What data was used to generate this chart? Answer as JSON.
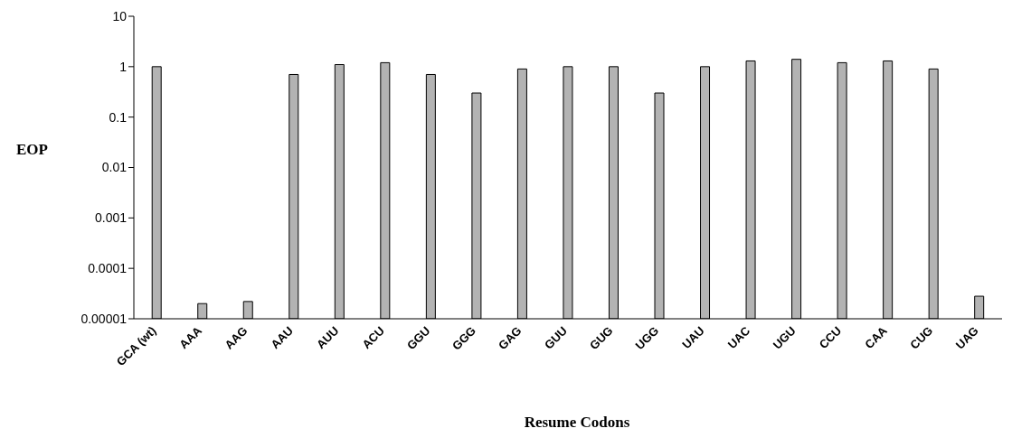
{
  "chart_data": {
    "type": "bar",
    "xlabel": "Resume Codons",
    "ylabel": "EOP",
    "categories": [
      "GCA (wt)",
      "AAA",
      "AAG",
      "AAU",
      "AUU",
      "ACU",
      "GGU",
      "GGG",
      "GAG",
      "GUU",
      "GUG",
      "UGG",
      "UAU",
      "UAC",
      "UGU",
      "CCU",
      "CAA",
      "CUG",
      "UAG"
    ],
    "values": [
      1,
      2e-05,
      2.2e-05,
      0.7,
      1.1,
      1.2,
      0.7,
      0.3,
      0.9,
      1,
      1,
      0.3,
      1,
      1.3,
      1.4,
      1.2,
      1.3,
      0.9,
      2.8e-05
    ],
    "color": "#b3b3b3",
    "log": "y",
    "ylim": [
      1e-05,
      10
    ],
    "yticks": [
      {
        "value": 1e-05,
        "label": "0.00001"
      },
      {
        "value": 0.0001,
        "label": "0.0001"
      },
      {
        "value": 0.001,
        "label": "0.001"
      },
      {
        "value": 0.01,
        "label": "0.01"
      },
      {
        "value": 0.1,
        "label": "0.1"
      },
      {
        "value": 1,
        "label": "1"
      },
      {
        "value": 10,
        "label": "10"
      }
    ],
    "grid": false,
    "legend": false
  }
}
